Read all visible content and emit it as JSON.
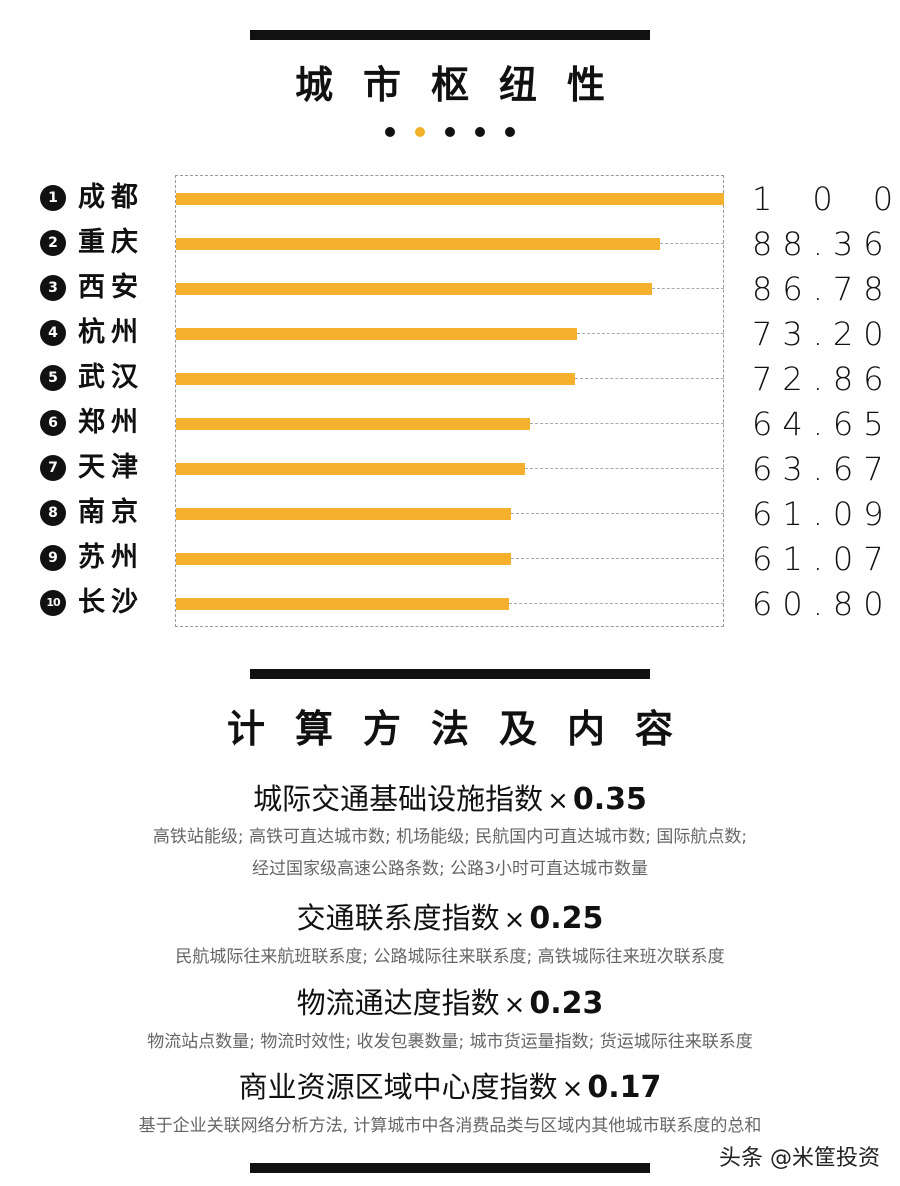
{
  "section1": {
    "title": "城市枢纽性"
  },
  "chart_data": {
    "type": "bar",
    "orientation": "horizontal",
    "categories": [
      "成都",
      "重庆",
      "西安",
      "杭州",
      "武汉",
      "郑州",
      "天津",
      "南京",
      "苏州",
      "长沙"
    ],
    "ranks": [
      "1",
      "2",
      "3",
      "4",
      "5",
      "6",
      "7",
      "8",
      "9",
      "10"
    ],
    "values": [
      100,
      88.36,
      86.78,
      73.2,
      72.86,
      64.65,
      63.67,
      61.09,
      61.07,
      60.8
    ],
    "value_labels": [
      "100",
      "88.36",
      "86.78",
      "73.20",
      "72.86",
      "64.65",
      "63.67",
      "61.09",
      "61.07",
      "60.80"
    ],
    "xlim": [
      0,
      100
    ],
    "bar_color": "#f5b12e",
    "title": "",
    "xlabel": "",
    "ylabel": ""
  },
  "section2": {
    "title": "计算方法及内容",
    "times_symbol": "×",
    "methods": [
      {
        "name": "城际交通基础设施指数",
        "weight": "0.35",
        "desc": [
          "高铁站能级; 高铁可直达城市数; 机场能级; 民航国内可直达城市数; 国际航点数;",
          "经过国家级高速公路条数; 公路3小时可直达城市数量"
        ]
      },
      {
        "name": "交通联系度指数",
        "weight": "0.25",
        "desc": [
          "民航城际往来航班联系度; 公路城际往来联系度; 高铁城际往来班次联系度"
        ]
      },
      {
        "name": "物流通达度指数",
        "weight": "0.23",
        "desc": [
          "物流站点数量; 物流时效性; 收发包裹数量; 城市货运量指数; 货运城际往来联系度"
        ]
      },
      {
        "name": "商业资源区域中心度指数",
        "weight": "0.17",
        "desc": [
          "基于企业关联网络分析方法, 计算城市中各消费品类与区域内其他城市联系度的总和"
        ]
      }
    ]
  },
  "watermark": "头条 @米筐投资",
  "colors": {
    "accent": "#f5b12e",
    "dark": "#111111"
  }
}
